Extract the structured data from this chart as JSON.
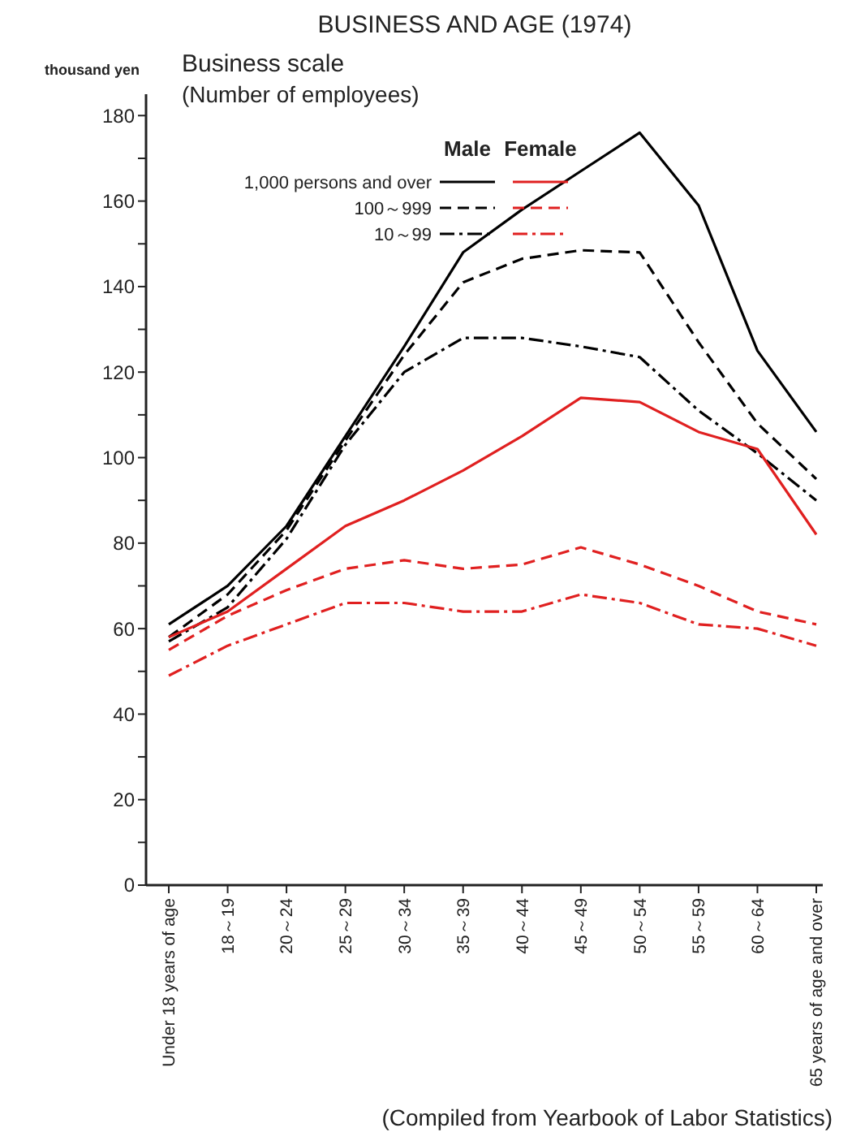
{
  "chart_data": {
    "type": "line",
    "title": "BUSINESS AND AGE (1974)",
    "ylabel": "thousand yen",
    "legend_title": "Business scale\n(Number of employees)",
    "categories": [
      "Under 18 years of age",
      "18～19",
      "20～24",
      "25～29",
      "30～34",
      "35～39",
      "40～44",
      "45～49",
      "50～54",
      "55～59",
      "60～64",
      "65 years of age and over"
    ],
    "series": [
      {
        "name": "1,000 persons and over",
        "color": "#000000",
        "line_style": "solid",
        "values": [
          61,
          70,
          84,
          105,
          126,
          148,
          158,
          167,
          176,
          159,
          125,
          106
        ]
      },
      {
        "name": "100～999",
        "color": "#000000",
        "line_style": "dashed",
        "values": [
          58,
          68,
          83,
          104,
          124,
          141,
          146.5,
          148.5,
          148,
          127,
          108,
          95
        ]
      },
      {
        "name": "10～99",
        "color": "#000000",
        "line_style": "dashdot",
        "values": [
          57,
          65,
          81,
          103,
          120,
          128,
          128,
          126,
          123.5,
          111,
          101,
          90
        ]
      },
      {
        "color": "#e02020",
        "line_style": "solid",
        "values": [
          58,
          64,
          74,
          84,
          90,
          97,
          105,
          114,
          113,
          106,
          102,
          82
        ]
      },
      {
        "color": "#e02020",
        "line_style": "dashed",
        "values": [
          55,
          63,
          69,
          74,
          76,
          74,
          75,
          79,
          75,
          70,
          64,
          61
        ]
      },
      {
        "color": "#e02020",
        "line_style": "dashdot",
        "values": [
          49,
          56,
          61,
          66,
          66,
          64,
          64,
          68,
          66,
          61,
          60,
          56
        ]
      }
    ],
    "ylim": [
      0,
      185
    ],
    "yticks": [
      0,
      {
        "value": 10,
        "label": null
      },
      20,
      {
        "value": 30,
        "label": null
      },
      40,
      {
        "value": 50,
        "label": null
      },
      60,
      {
        "value": 70,
        "label": null
      },
      80,
      {
        "value": 90,
        "label": null
      },
      100,
      {
        "value": 110,
        "label": null
      },
      120,
      {
        "value": 130,
        "label": null
      },
      140,
      {
        "value": 150,
        "label": null
      },
      160,
      {
        "value": 170,
        "label": null
      },
      180
    ],
    "grid": false,
    "legend": "top left",
    "annotations": [
      "Male",
      "Female",
      "(Compiled from Yearbook of Labor Statistics)"
    ]
  }
}
